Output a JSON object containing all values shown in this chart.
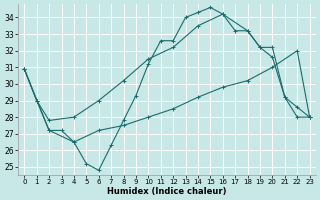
{
  "background_color": "#c8e8e8",
  "grid_color": "#ffffff",
  "line_color": "#1a6b6b",
  "xlabel": "Humidex (Indice chaleur)",
  "xlim": [
    -0.5,
    23.5
  ],
  "ylim": [
    24.5,
    34.8
  ],
  "yticks": [
    25,
    26,
    27,
    28,
    29,
    30,
    31,
    32,
    33,
    34
  ],
  "xticks": [
    0,
    1,
    2,
    3,
    4,
    5,
    6,
    7,
    8,
    9,
    10,
    11,
    12,
    13,
    14,
    15,
    16,
    17,
    18,
    19,
    20,
    21,
    22,
    23
  ],
  "line1_x": [
    0,
    1,
    2,
    3,
    4,
    5,
    6,
    7,
    8,
    9,
    10,
    11,
    12,
    13,
    14,
    15,
    16,
    17,
    18,
    19,
    20,
    21,
    22,
    23
  ],
  "line1_y": [
    30.9,
    29.0,
    27.2,
    27.2,
    26.5,
    25.2,
    24.8,
    26.3,
    27.8,
    29.3,
    31.2,
    32.6,
    32.6,
    34.0,
    34.3,
    34.6,
    34.2,
    33.2,
    33.2,
    32.2,
    31.6,
    29.2,
    28.0,
    28.0
  ],
  "line2_x": [
    0,
    1,
    2,
    4,
    6,
    8,
    10,
    12,
    14,
    16,
    18,
    19,
    20,
    21,
    22,
    23
  ],
  "line2_y": [
    30.9,
    29.0,
    27.8,
    28.0,
    29.0,
    30.2,
    31.5,
    32.2,
    33.5,
    34.2,
    33.2,
    32.2,
    32.2,
    29.2,
    28.6,
    28.0
  ],
  "line3_x": [
    0,
    2,
    4,
    6,
    8,
    10,
    12,
    14,
    16,
    18,
    20,
    22,
    23
  ],
  "line3_y": [
    30.9,
    27.2,
    26.5,
    27.2,
    27.5,
    28.0,
    28.5,
    29.2,
    29.8,
    30.2,
    31.0,
    32.0,
    28.0
  ]
}
